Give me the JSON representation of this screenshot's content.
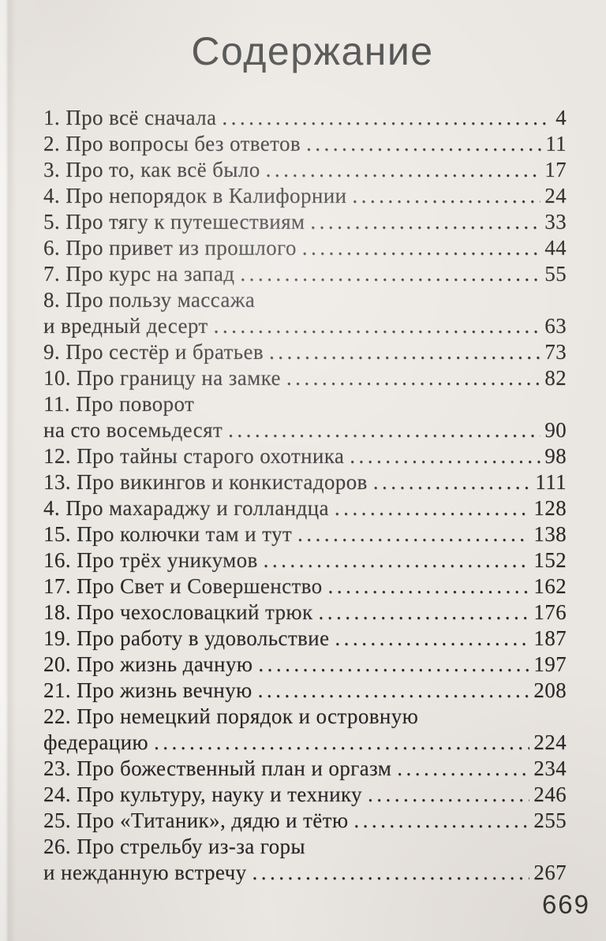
{
  "page": {
    "title": "Содержание",
    "corner_number": "669"
  },
  "colors": {
    "paper": "#eae6e1",
    "ink": "#262626",
    "title_ink": "#414141"
  },
  "toc": {
    "entries": [
      {
        "lines": [
          "1. Про всё сначала"
        ],
        "page": "4"
      },
      {
        "lines": [
          "2. Про вопросы без ответов"
        ],
        "page": "11"
      },
      {
        "lines": [
          "3. Про то, как всё было"
        ],
        "page": "17"
      },
      {
        "lines": [
          "4. Про непорядок в Калифорнии"
        ],
        "page": "24"
      },
      {
        "lines": [
          "5. Про тягу к путешествиям"
        ],
        "page": "33"
      },
      {
        "lines": [
          "6. Про привет из прошлого"
        ],
        "page": "44"
      },
      {
        "lines": [
          "7. Про курс на запад"
        ],
        "page": "55"
      },
      {
        "lines": [
          "8. Про пользу массажа",
          "и вредный десерт"
        ],
        "page": "63"
      },
      {
        "lines": [
          "9. Про сестёр и братьев"
        ],
        "page": "73"
      },
      {
        "lines": [
          "10. Про границу на замке"
        ],
        "page": "82"
      },
      {
        "lines": [
          "11. Про поворот",
          "на сто восемьдесят"
        ],
        "page": "90"
      },
      {
        "lines": [
          "12. Про тайны старого охотника"
        ],
        "page": "98"
      },
      {
        "lines": [
          "13. Про викингов и конкистадоров"
        ],
        "page": "111"
      },
      {
        "lines": [
          "4. Про махараджу и голландца"
        ],
        "page": "128"
      },
      {
        "lines": [
          "15. Про колючки там и тут"
        ],
        "page": "138"
      },
      {
        "lines": [
          "16. Про трёх уникумов"
        ],
        "page": "152"
      },
      {
        "lines": [
          "17. Про Свет и Совершенство"
        ],
        "page": "162"
      },
      {
        "lines": [
          "18. Про чехословацкий трюк"
        ],
        "page": "176"
      },
      {
        "lines": [
          "19. Про работу в удовольствие"
        ],
        "page": "187"
      },
      {
        "lines": [
          "20. Про жизнь дачную"
        ],
        "page": "197"
      },
      {
        "lines": [
          "21. Про жизнь вечную"
        ],
        "page": "208"
      },
      {
        "lines": [
          "22. Про немецкий порядок и островную",
          "федерацию"
        ],
        "page": "224"
      },
      {
        "lines": [
          "23. Про божественный план и оргазм"
        ],
        "page": "234"
      },
      {
        "lines": [
          "24. Про культуру, науку и технику"
        ],
        "page": "246"
      },
      {
        "lines": [
          "25. Про «Титаник», дядю и тётю"
        ],
        "page": "255"
      },
      {
        "lines": [
          "26. Про стрельбу из-за горы",
          "и нежданную встречу"
        ],
        "page": "267"
      }
    ]
  }
}
